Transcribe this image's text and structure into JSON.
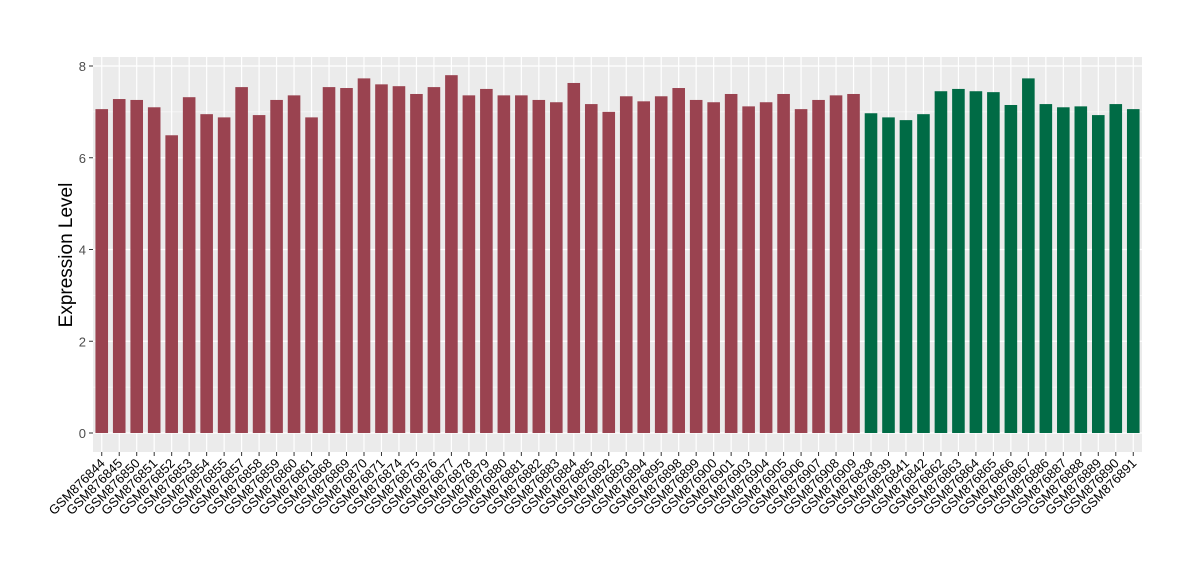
{
  "chart_data": {
    "type": "bar",
    "title": "",
    "xlabel": "",
    "ylabel": "Expression Level",
    "ylim": [
      0,
      8.3
    ],
    "yticks": [
      0,
      2,
      4,
      6,
      8
    ],
    "grid": true,
    "legend": "none",
    "colors": {
      "group1": "#9A4350",
      "group2": "#006B45",
      "panel": "#EBEBEB",
      "grid": "#FFFFFF"
    },
    "categories": [
      "GSM876844",
      "GSM876845",
      "GSM876850",
      "GSM876851",
      "GSM876852",
      "GSM876853",
      "GSM876854",
      "GSM876855",
      "GSM876857",
      "GSM876858",
      "GSM876859",
      "GSM876860",
      "GSM876861",
      "GSM876868",
      "GSM876869",
      "GSM876870",
      "GSM876871",
      "GSM876874",
      "GSM876875",
      "GSM876876",
      "GSM876877",
      "GSM876878",
      "GSM876879",
      "GSM876880",
      "GSM876881",
      "GSM876882",
      "GSM876883",
      "GSM876884",
      "GSM876885",
      "GSM876892",
      "GSM876893",
      "GSM876894",
      "GSM876895",
      "GSM876898",
      "GSM876899",
      "GSM876900",
      "GSM876901",
      "GSM876903",
      "GSM876904",
      "GSM876905",
      "GSM876906",
      "GSM876907",
      "GSM876908",
      "GSM876909",
      "GSM876838",
      "GSM876839",
      "GSM876841",
      "GSM876842",
      "GSM876862",
      "GSM876863",
      "GSM876864",
      "GSM876865",
      "GSM876866",
      "GSM876867",
      "GSM876886",
      "GSM876887",
      "GSM876888",
      "GSM876889",
      "GSM876890",
      "GSM876891"
    ],
    "values": [
      7.06,
      7.28,
      7.26,
      7.1,
      6.49,
      7.32,
      6.95,
      6.88,
      7.54,
      6.93,
      7.26,
      7.36,
      6.88,
      7.54,
      7.52,
      7.73,
      7.6,
      7.56,
      7.39,
      7.54,
      7.8,
      7.36,
      7.5,
      7.36,
      7.36,
      7.26,
      7.21,
      7.63,
      7.17,
      7.0,
      7.34,
      7.23,
      7.34,
      7.52,
      7.26,
      7.21,
      7.39,
      7.12,
      7.21,
      7.39,
      7.06,
      7.26,
      7.36,
      7.39,
      6.97,
      6.88,
      6.82,
      6.95,
      7.45,
      7.5,
      7.45,
      7.43,
      7.15,
      7.73,
      7.17,
      7.1,
      7.12,
      6.93,
      7.17,
      7.06
    ],
    "groups": [
      "group1",
      "group1",
      "group1",
      "group1",
      "group1",
      "group1",
      "group1",
      "group1",
      "group1",
      "group1",
      "group1",
      "group1",
      "group1",
      "group1",
      "group1",
      "group1",
      "group1",
      "group1",
      "group1",
      "group1",
      "group1",
      "group1",
      "group1",
      "group1",
      "group1",
      "group1",
      "group1",
      "group1",
      "group1",
      "group1",
      "group1",
      "group1",
      "group1",
      "group1",
      "group1",
      "group1",
      "group1",
      "group1",
      "group1",
      "group1",
      "group1",
      "group1",
      "group1",
      "group1",
      "group2",
      "group2",
      "group2",
      "group2",
      "group2",
      "group2",
      "group2",
      "group2",
      "group2",
      "group2",
      "group2",
      "group2",
      "group2",
      "group2",
      "group2",
      "group2"
    ]
  }
}
